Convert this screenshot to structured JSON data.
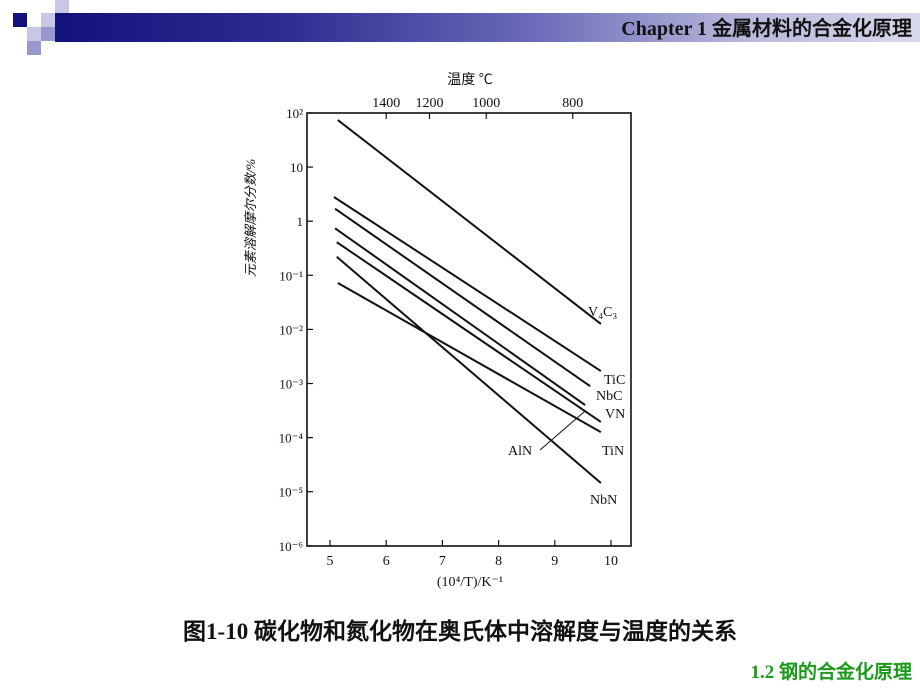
{
  "header": {
    "title": "Chapter 1 金属材料的合金化原理",
    "bar_colors": [
      "#12127a",
      "#d8d8ec"
    ]
  },
  "caption": "图1-10 碳化物和氮化物在奥氏体中溶解度与温度的关系",
  "footer": "1.2 钢的合金化原理",
  "chart_data": {
    "type": "line",
    "title": "",
    "xlabel": "(10⁴/T)/K⁻¹",
    "ylabel": "元素溶解摩尔分数/%",
    "top_xlabel": "温度 ℃",
    "xlim": [
      4.6,
      10.35
    ],
    "ylim": [
      1e-06,
      100
    ],
    "yscale": "log",
    "x_ticks": [
      5,
      6,
      7,
      8,
      9,
      10
    ],
    "x_tick_labels": [
      "5",
      "6",
      "7",
      "8",
      "9",
      "10"
    ],
    "y_ticks": [
      100,
      10,
      1,
      0.1,
      0.01,
      0.001,
      0.0001,
      1e-05,
      1e-06
    ],
    "y_tick_labels": [
      "10²",
      "10",
      "1",
      "10⁻¹",
      "10⁻²",
      "10⁻³",
      "10⁻⁴",
      "10⁻⁵",
      "10⁻⁶"
    ],
    "top_x_ticks": [
      1400,
      1200,
      1000,
      800
    ],
    "top_x_tick_positions": [
      6.0,
      6.77,
      7.78,
      9.32
    ],
    "grid": false,
    "legend": "inline labels at line ends",
    "series": [
      {
        "name": "V₄C₃",
        "x": [
          5.14,
          9.82
        ],
        "y": [
          74,
          0.0126
        ]
      },
      {
        "name": "TiC",
        "x": [
          5.07,
          9.82
        ],
        "y": [
          2.8,
          0.0017
        ]
      },
      {
        "name": "NbC",
        "x": [
          5.09,
          9.63
        ],
        "y": [
          1.7,
          0.00089
        ]
      },
      {
        "name": "VN",
        "x": [
          5.09,
          9.54
        ],
        "y": [
          0.74,
          0.0004
        ]
      },
      {
        "name": "AlN",
        "x": [
          5.12,
          9.82
        ],
        "y": [
          0.41,
          0.000195
        ]
      },
      {
        "name": "TiN",
        "x": [
          5.14,
          9.82
        ],
        "y": [
          0.072,
          0.000126
        ]
      },
      {
        "name": "NbN",
        "x": [
          5.12,
          9.82
        ],
        "y": [
          0.22,
          1.45e-05
        ]
      }
    ],
    "annotations": [
      {
        "text": "AlN",
        "points_to": "AlN",
        "label_x": 7.2,
        "label_y": 0.0002
      }
    ]
  }
}
